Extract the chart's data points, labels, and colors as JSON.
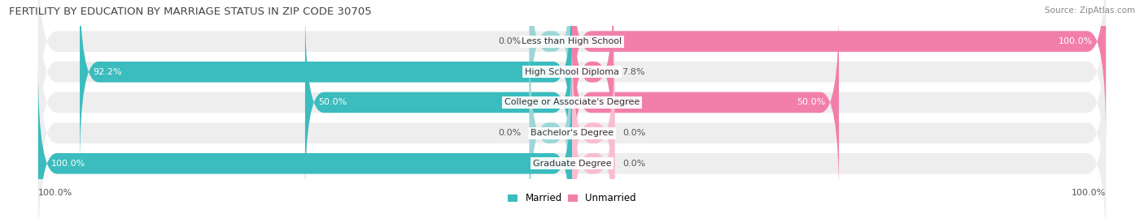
{
  "title": "FERTILITY BY EDUCATION BY MARRIAGE STATUS IN ZIP CODE 30705",
  "source": "Source: ZipAtlas.com",
  "categories": [
    "Less than High School",
    "High School Diploma",
    "College or Associate's Degree",
    "Bachelor's Degree",
    "Graduate Degree"
  ],
  "married": [
    0.0,
    92.2,
    50.0,
    0.0,
    100.0
  ],
  "unmarried": [
    100.0,
    7.8,
    50.0,
    0.0,
    0.0
  ],
  "married_color": "#3bbcbe",
  "married_color_light": "#9dd6d8",
  "unmarried_color": "#f27faa",
  "unmarried_color_light": "#f9bdd1",
  "bar_bg_color": "#eeeeee",
  "bar_height": 0.68,
  "stub_size": 8.0,
  "figsize": [
    14.06,
    2.69
  ],
  "dpi": 100,
  "title_fontsize": 9.5,
  "label_fontsize": 8.0,
  "legend_fontsize": 8.5,
  "source_fontsize": 7.5
}
